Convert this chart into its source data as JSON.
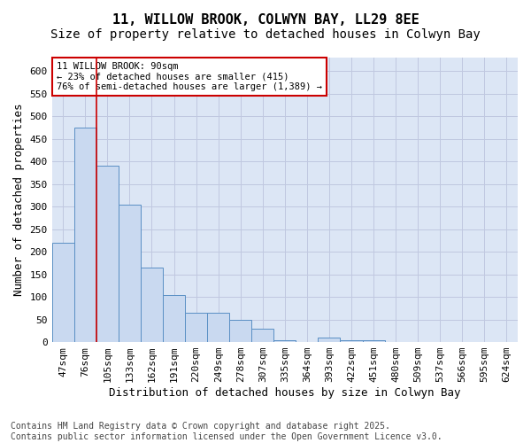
{
  "title_line1": "11, WILLOW BROOK, COLWYN BAY, LL29 8EE",
  "title_line2": "Size of property relative to detached houses in Colwyn Bay",
  "xlabel": "Distribution of detached houses by size in Colwyn Bay",
  "ylabel": "Number of detached properties",
  "bins": [
    "47sqm",
    "76sqm",
    "105sqm",
    "133sqm",
    "162sqm",
    "191sqm",
    "220sqm",
    "249sqm",
    "278sqm",
    "307sqm",
    "335sqm",
    "364sqm",
    "393sqm",
    "422sqm",
    "451sqm",
    "480sqm",
    "509sqm",
    "537sqm",
    "566sqm",
    "595sqm",
    "624sqm"
  ],
  "values": [
    220,
    475,
    390,
    305,
    165,
    105,
    65,
    65,
    50,
    30,
    5,
    0,
    10,
    5,
    5,
    0,
    0,
    0,
    0,
    0,
    0
  ],
  "bar_color": "#c9d9f0",
  "bar_edge_color": "#5a8fc4",
  "grid_color": "#c0c8e0",
  "background_color": "#dce6f5",
  "annotation_box_text": "11 WILLOW BROOK: 90sqm\n← 23% of detached houses are smaller (415)\n76% of semi-detached houses are larger (1,389) →",
  "annotation_box_color": "#cc0000",
  "vline_x": 1.5,
  "ylim": [
    0,
    630
  ],
  "yticks": [
    0,
    50,
    100,
    150,
    200,
    250,
    300,
    350,
    400,
    450,
    500,
    550,
    600
  ],
  "footnote": "Contains HM Land Registry data © Crown copyright and database right 2025.\nContains public sector information licensed under the Open Government Licence v3.0.",
  "title_fontsize": 11,
  "subtitle_fontsize": 10,
  "label_fontsize": 9,
  "tick_fontsize": 8,
  "annot_fontsize": 7.5,
  "footnote_fontsize": 7
}
